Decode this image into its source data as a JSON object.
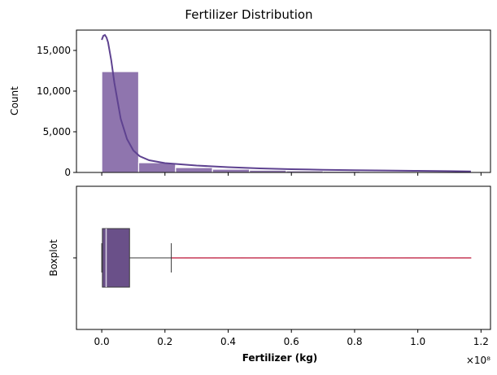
{
  "chart_data": [
    {
      "type": "bar",
      "title": "Fertilizer Distribution",
      "ylabel": "Count",
      "xlabel": "",
      "xlim": [
        -0.08,
        1.23
      ],
      "ylim": [
        0,
        17500
      ],
      "xticks": [
        0.0,
        0.2,
        0.4,
        0.6,
        0.8,
        1.0,
        1.2
      ],
      "yticks": [
        0,
        5000,
        10000,
        15000
      ],
      "ytick_labels": [
        "0",
        "5,000",
        "10,000",
        "15,000"
      ],
      "bin_edges": [
        0,
        0.1168,
        0.2336,
        0.3504,
        0.4672,
        0.584,
        0.7008,
        0.8176,
        0.9344,
        1.0512,
        1.168
      ],
      "counts": [
        12400,
        1200,
        600,
        400,
        280,
        200,
        150,
        120,
        100,
        80
      ],
      "kde": {
        "x": [
          0.0,
          0.005,
          0.01,
          0.015,
          0.02,
          0.03,
          0.04,
          0.06,
          0.08,
          0.1,
          0.12,
          0.15,
          0.2,
          0.3,
          0.4,
          0.5,
          0.6,
          0.7,
          0.8,
          0.9,
          1.0,
          1.1,
          1.168
        ],
        "y": [
          16300,
          16800,
          16900,
          16600,
          16000,
          13800,
          11000,
          6600,
          4100,
          2700,
          2000,
          1500,
          1150,
          850,
          650,
          500,
          400,
          330,
          280,
          240,
          200,
          160,
          130
        ]
      },
      "colors": {
        "bar": "#8f75ae",
        "edge": "#ffffff",
        "kde": "#5e4290"
      }
    },
    {
      "type": "box",
      "ylabel": "Boxplot",
      "xlabel": "Fertilizer (kg)",
      "x_offset_label": "×10⁸",
      "xticks": [
        0.0,
        0.2,
        0.4,
        0.6,
        0.8,
        1.0,
        1.2
      ],
      "xtick_labels": [
        "0.0",
        "0.2",
        "0.4",
        "0.6",
        "0.8",
        "1.0",
        "1.2"
      ],
      "box": {
        "whisker_low": 0.0,
        "q1": 0.002,
        "median": 0.014,
        "q3": 0.088,
        "whisker_high": 0.22,
        "outlier_range": [
          0.22,
          1.168
        ]
      },
      "colors": {
        "box": "#6a5089",
        "lines": "#3a3a3a",
        "outliers": "#c02646"
      }
    }
  ]
}
